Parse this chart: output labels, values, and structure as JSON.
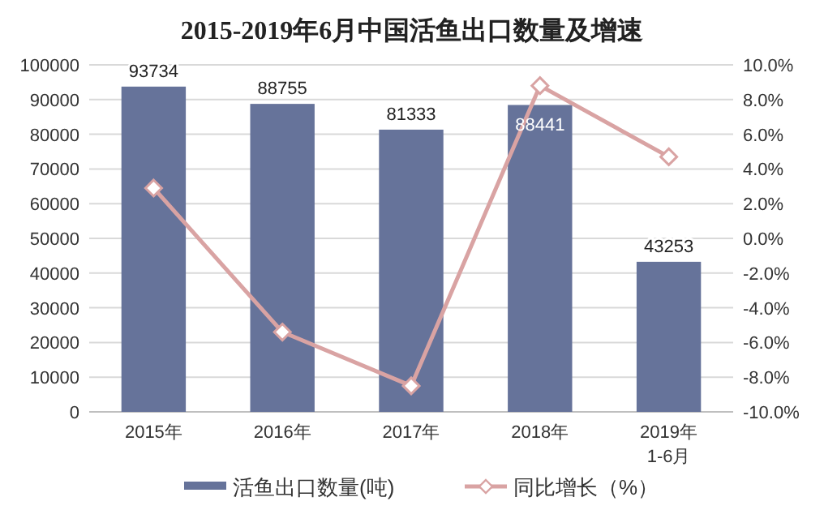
{
  "chart_data": {
    "type": "bar",
    "title": "2015-2019年6月中国活鱼出口数量及增速",
    "categories": [
      "2015年",
      "2016年",
      "2017年",
      "2018年",
      "2019年\n1-6月"
    ],
    "series": [
      {
        "name": "活鱼出口数量(吨)",
        "color": "#66739a",
        "values": [
          93734,
          88755,
          81333,
          88441,
          43253
        ],
        "data_labels": true
      },
      {
        "name": "同比增长（%）",
        "type": "line",
        "axis": "y2",
        "color": "#d9a3a3",
        "marker": "diamond",
        "values": [
          2.9,
          -5.4,
          -8.5,
          8.8,
          4.7
        ]
      }
    ],
    "ylim": [
      0,
      100000
    ],
    "yticks": [
      0,
      10000,
      20000,
      30000,
      40000,
      50000,
      60000,
      70000,
      80000,
      90000,
      100000
    ],
    "y2lim": [
      -10,
      10
    ],
    "y2ticks": [
      {
        "value": -10,
        "label": "-10.0%"
      },
      {
        "value": -8,
        "label": "-8.0%"
      },
      {
        "value": -6,
        "label": "-6.0%"
      },
      {
        "value": -4,
        "label": "-4.0%"
      },
      {
        "value": -2,
        "label": "-2.0%"
      },
      {
        "value": 0,
        "label": "0.0%"
      },
      {
        "value": 2,
        "label": "2.0%"
      },
      {
        "value": 4,
        "label": "4.0%"
      },
      {
        "value": 6,
        "label": "6.0%"
      },
      {
        "value": 8,
        "label": "8.0%"
      },
      {
        "value": 10,
        "label": "10.0%"
      }
    ],
    "grid": "y",
    "legend": "bottom"
  }
}
